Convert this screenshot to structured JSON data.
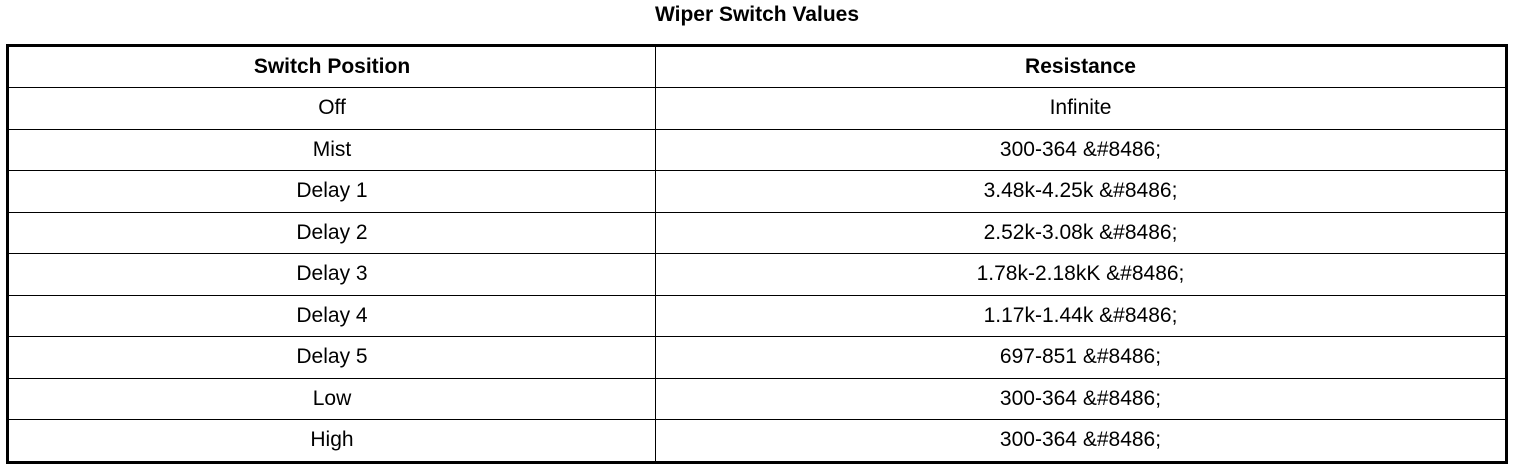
{
  "title": "Wiper Switch Values",
  "table": {
    "header": [
      "Switch Position",
      "Resistance"
    ],
    "rows": [
      [
        "Off",
        "Infinite"
      ],
      [
        "Mist",
        "300-364 &#8486;"
      ],
      [
        "Delay 1",
        "3.48k-4.25k &#8486;"
      ],
      [
        "Delay 2",
        "2.52k-3.08k &#8486;"
      ],
      [
        "Delay 3",
        "1.78k-2.18kK &#8486;"
      ],
      [
        "Delay 4",
        "1.17k-1.44k &#8486;"
      ],
      [
        "Delay 5",
        "697-851 &#8486;"
      ],
      [
        "Low",
        "300-364 &#8486;"
      ],
      [
        "High",
        "300-364 &#8486;"
      ]
    ]
  }
}
